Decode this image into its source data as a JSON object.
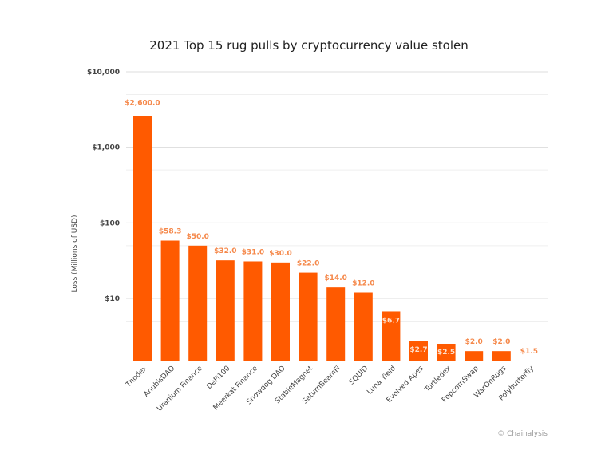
{
  "chart_data": {
    "type": "bar",
    "title": "2021 Top 15 rug pulls by cryptocurrency value stolen",
    "xlabel": "",
    "ylabel": "Loss (Millions of USD)",
    "yscale": "log",
    "ylim": [
      1.5,
      10000
    ],
    "yticks": [
      10,
      100,
      1000,
      10000
    ],
    "ytick_labels": [
      "$10",
      "$100",
      "$1,000",
      "$10,000"
    ],
    "minor_gridlines": [
      5,
      50,
      500,
      5000
    ],
    "grid": true,
    "categories": [
      "Thodex",
      "AnubisDAO",
      "Uranium Finance",
      "DeFi100",
      "Meerkat Finance",
      "Snowdog DAO",
      "StableMagnet",
      "SaturnBeamFi",
      "SQUID",
      "Luna Yield",
      "Evolved Apes",
      "Turtledex",
      "PopcornSwap",
      "WarOnRugs",
      "Polybutterfly"
    ],
    "values": [
      2600.0,
      58.3,
      50.0,
      32.0,
      31.0,
      30.0,
      22.0,
      14.0,
      12.0,
      6.7,
      2.7,
      2.5,
      2.0,
      2.0,
      1.5
    ],
    "data_labels": [
      "$2,600.0",
      "$58.3",
      "$50.0",
      "$32.0",
      "$31.0",
      "$30.0",
      "$22.0",
      "$14.0",
      "$12.0",
      "$6.7",
      "$2.7",
      "$2.5",
      "$2.0",
      "$2.0",
      "$1.5"
    ],
    "colors": {
      "bar": "#ff5a00",
      "label": "#f5884a",
      "label_inside": "#fde0cc",
      "grid": "#e6e6e6"
    }
  },
  "credit": "© Chainalysis"
}
